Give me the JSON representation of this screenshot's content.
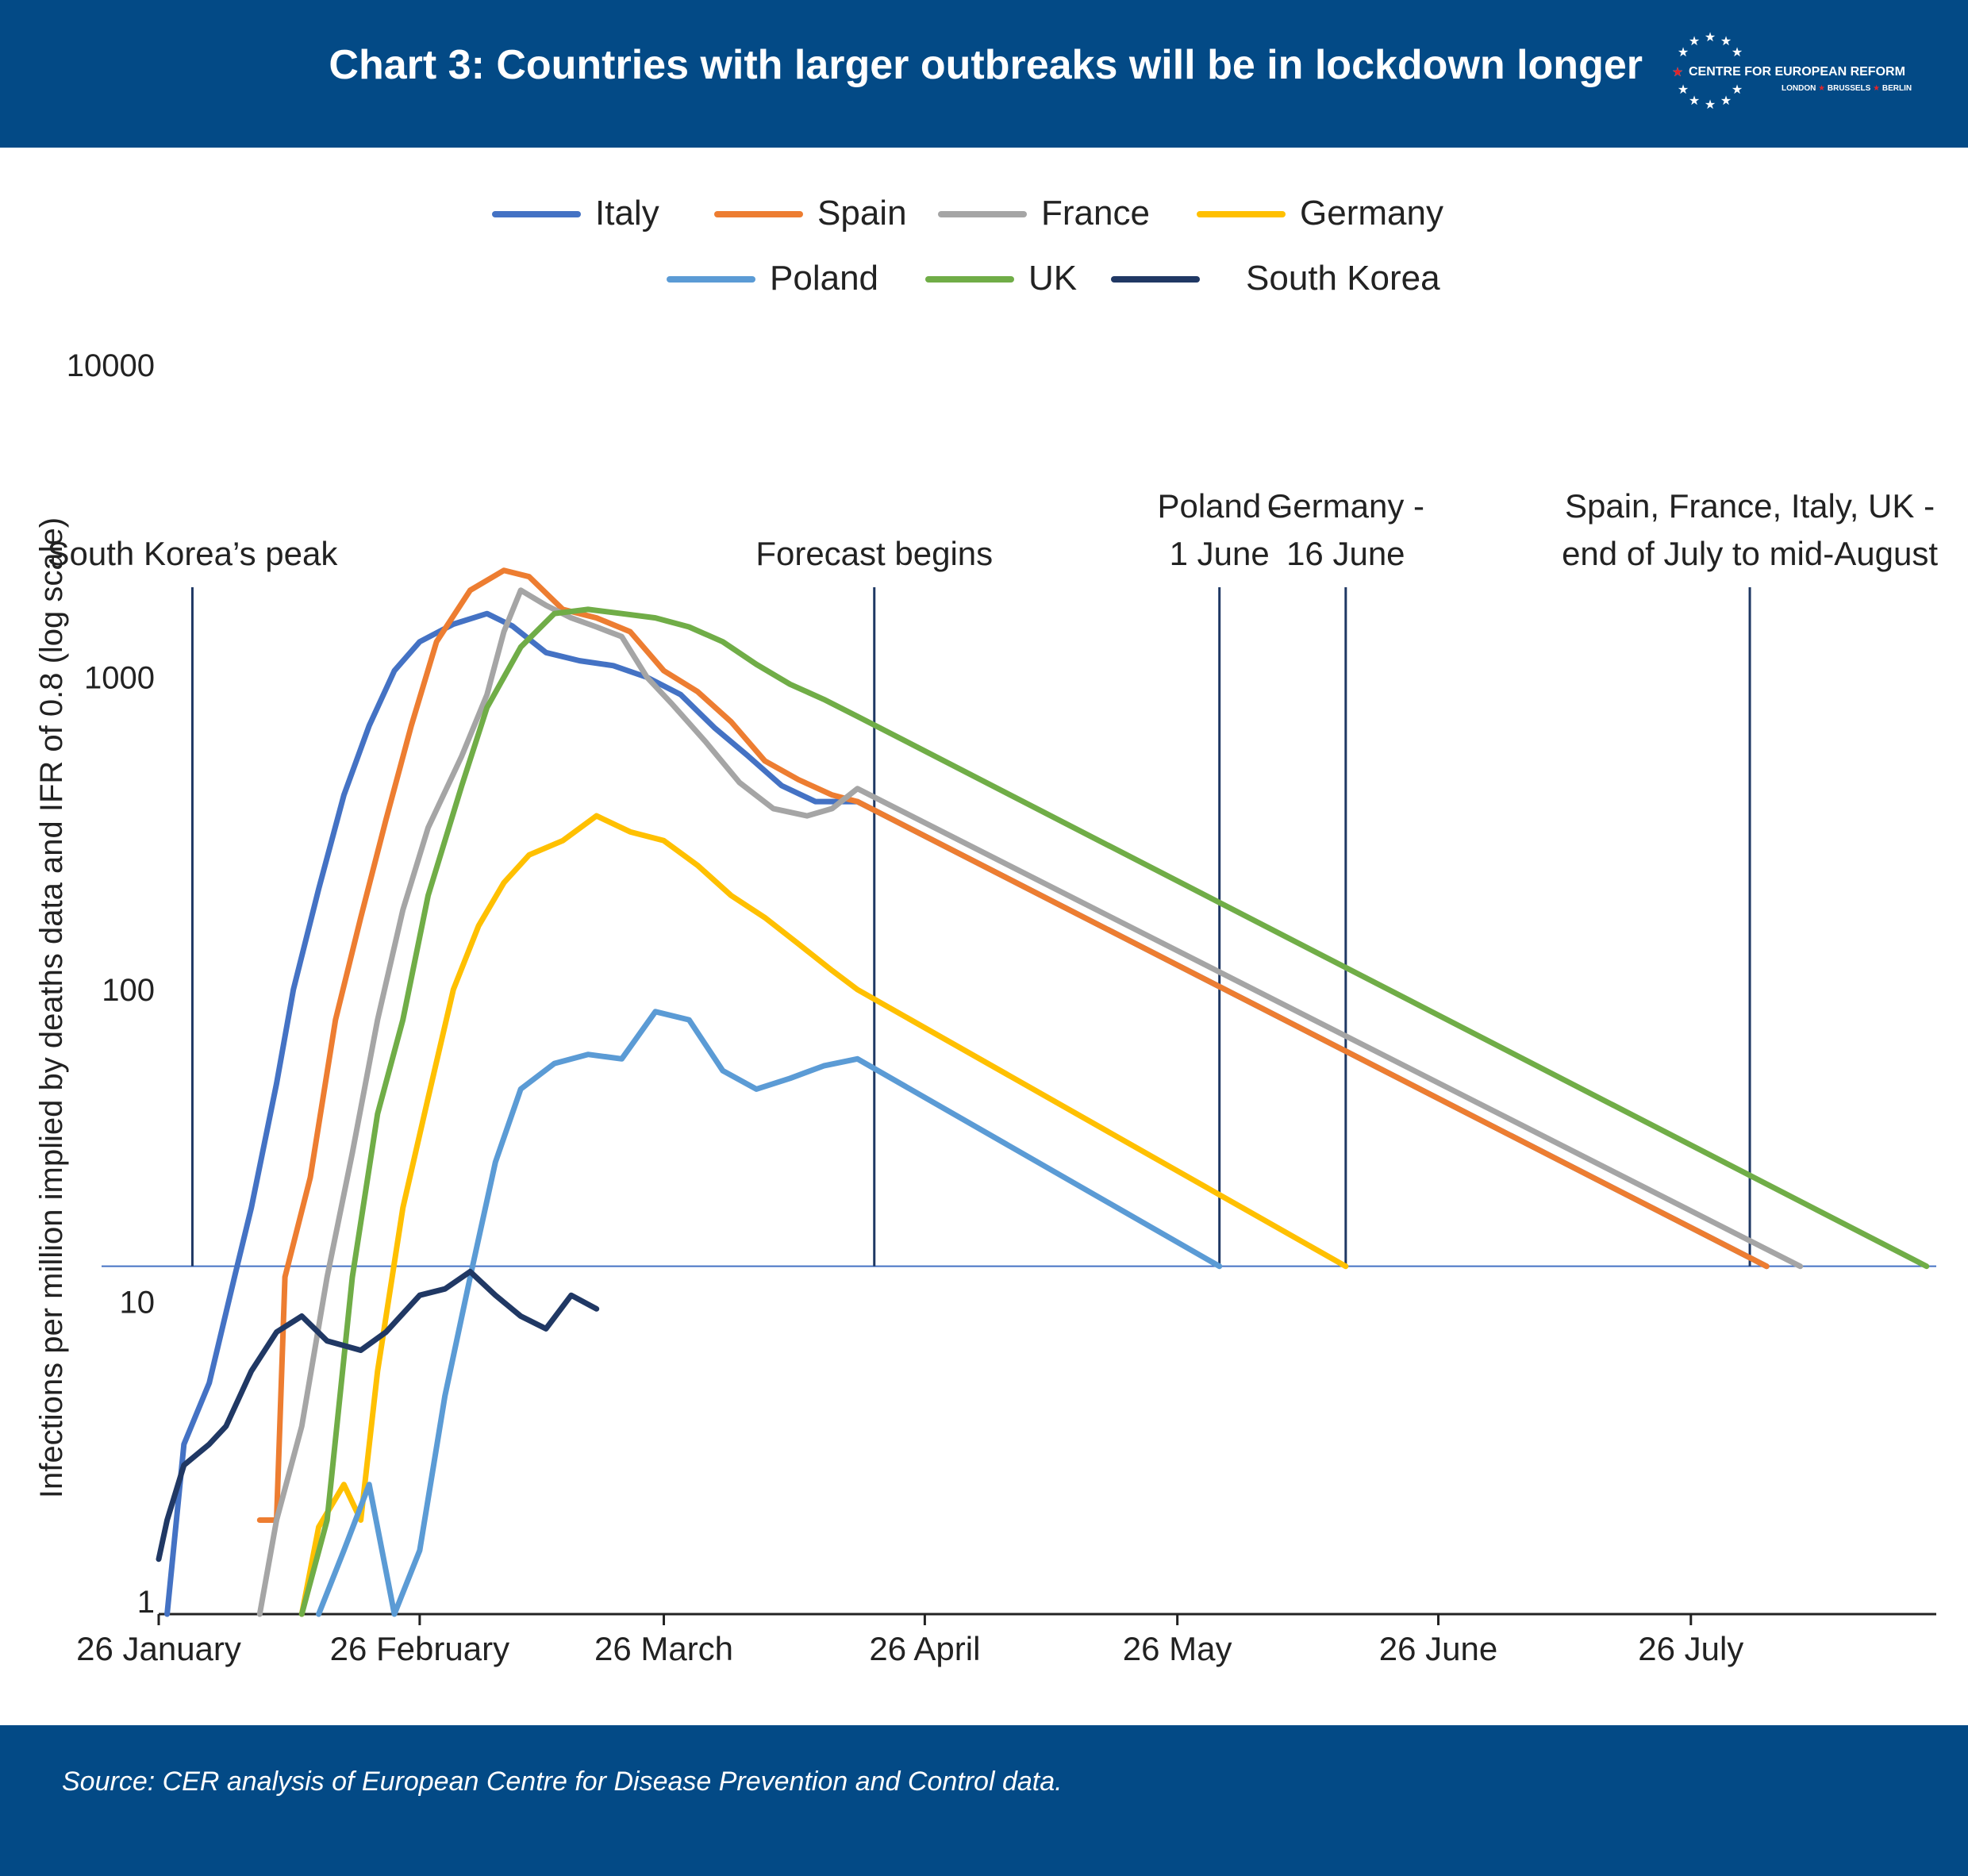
{
  "header": {
    "title": "Chart 3: Countries with larger outbreaks will be in lockdown longer",
    "logo_name": "CENTRE FOR EUROPEAN REFORM",
    "logo_cities": [
      "LONDON",
      "BRUSSELS",
      "BERLIN"
    ],
    "background": "#034a86"
  },
  "footer": {
    "source": "Source: CER analysis of European Centre for Disease Prevention and Control data."
  },
  "chart_data": {
    "type": "line",
    "title": "Chart 3: Countries with larger outbreaks will be in lockdown longer",
    "ylabel": "Infections per million implied by deaths data and IFR of 0.8 (log scale)",
    "xlabel": "",
    "y_scale": "log",
    "ylim": [
      1,
      10000
    ],
    "y_ticks": [
      "1",
      "10",
      "100",
      "1000",
      "10000"
    ],
    "x_ticks": [
      "26 January",
      "26 February",
      "26 March",
      "26 April",
      "26 May",
      "26 June",
      "26 July"
    ],
    "xlim": [
      "2020-01-26",
      "2020-08-27"
    ],
    "threshold": {
      "value": 13,
      "color": "#4472c4"
    },
    "legend_position": "top-center",
    "grid": false,
    "annotations": [
      {
        "date": "2020-01-30",
        "lines": [
          "South Korea’s peak"
        ]
      },
      {
        "date": "2020-04-20",
        "lines": [
          "Forecast begins"
        ]
      },
      {
        "date": "2020-05-31",
        "lines": [
          "Poland -",
          "1 June"
        ]
      },
      {
        "date": "2020-06-15",
        "lines": [
          "Germany -",
          "16 June"
        ]
      },
      {
        "date": "2020-08-02",
        "lines": [
          "Spain, France, Italy, UK -",
          "end of July to mid-August"
        ]
      }
    ],
    "series": [
      {
        "name": "Italy",
        "color": "#4472c4",
        "points": [
          [
            "2020-01-27",
            1
          ],
          [
            "2020-01-29",
            3.5
          ],
          [
            "2020-02-01",
            5.5
          ],
          [
            "2020-02-04",
            12
          ],
          [
            "2020-02-06",
            20
          ],
          [
            "2020-02-09",
            50
          ],
          [
            "2020-02-11",
            100
          ],
          [
            "2020-02-14",
            210
          ],
          [
            "2020-02-17",
            420
          ],
          [
            "2020-02-20",
            700
          ],
          [
            "2020-02-23",
            1050
          ],
          [
            "2020-02-26",
            1300
          ],
          [
            "2020-03-01",
            1480
          ],
          [
            "2020-03-05",
            1600
          ],
          [
            "2020-03-08",
            1460
          ],
          [
            "2020-03-12",
            1200
          ],
          [
            "2020-03-16",
            1130
          ],
          [
            "2020-03-20",
            1090
          ],
          [
            "2020-03-24",
            1000
          ],
          [
            "2020-03-28",
            880
          ],
          [
            "2020-04-01",
            690
          ],
          [
            "2020-04-05",
            560
          ],
          [
            "2020-04-09",
            450
          ],
          [
            "2020-04-13",
            400
          ],
          [
            "2020-04-18",
            400
          ],
          [
            "2020-08-04",
            13
          ]
        ]
      },
      {
        "name": "Spain",
        "color": "#ed7d31",
        "points": [
          [
            "2020-02-07",
            2
          ],
          [
            "2020-02-09",
            2
          ],
          [
            "2020-02-10",
            12
          ],
          [
            "2020-02-13",
            25
          ],
          [
            "2020-02-16",
            80
          ],
          [
            "2020-02-19",
            170
          ],
          [
            "2020-02-22",
            350
          ],
          [
            "2020-02-25",
            700
          ],
          [
            "2020-02-28",
            1300
          ],
          [
            "2020-03-03",
            1900
          ],
          [
            "2020-03-07",
            2200
          ],
          [
            "2020-03-10",
            2100
          ],
          [
            "2020-03-14",
            1650
          ],
          [
            "2020-03-18",
            1550
          ],
          [
            "2020-03-22",
            1400
          ],
          [
            "2020-03-26",
            1050
          ],
          [
            "2020-03-30",
            900
          ],
          [
            "2020-04-03",
            720
          ],
          [
            "2020-04-07",
            540
          ],
          [
            "2020-04-11",
            470
          ],
          [
            "2020-04-15",
            420
          ],
          [
            "2020-04-18",
            400
          ],
          [
            "2020-08-04",
            13
          ]
        ]
      },
      {
        "name": "France",
        "color": "#a5a5a5",
        "points": [
          [
            "2020-02-07",
            1
          ],
          [
            "2020-02-09",
            2
          ],
          [
            "2020-02-12",
            4
          ],
          [
            "2020-02-15",
            12
          ],
          [
            "2020-02-18",
            30
          ],
          [
            "2020-02-21",
            80
          ],
          [
            "2020-02-24",
            180
          ],
          [
            "2020-02-27",
            330
          ],
          [
            "2020-03-02",
            560
          ],
          [
            "2020-03-05",
            880
          ],
          [
            "2020-03-07",
            1400
          ],
          [
            "2020-03-09",
            1900
          ],
          [
            "2020-03-12",
            1700
          ],
          [
            "2020-03-15",
            1550
          ],
          [
            "2020-03-18",
            1450
          ],
          [
            "2020-03-21",
            1350
          ],
          [
            "2020-03-24",
            1000
          ],
          [
            "2020-03-27",
            820
          ],
          [
            "2020-03-31",
            620
          ],
          [
            "2020-04-04",
            460
          ],
          [
            "2020-04-08",
            380
          ],
          [
            "2020-04-12",
            360
          ],
          [
            "2020-04-15",
            380
          ],
          [
            "2020-04-18",
            440
          ],
          [
            "2020-08-08",
            13
          ]
        ]
      },
      {
        "name": "Germany",
        "color": "#ffc000",
        "points": [
          [
            "2020-02-12",
            1
          ],
          [
            "2020-02-14",
            1.9
          ],
          [
            "2020-02-17",
            2.6
          ],
          [
            "2020-02-19",
            2
          ],
          [
            "2020-02-21",
            6
          ],
          [
            "2020-02-24",
            20
          ],
          [
            "2020-02-27",
            45
          ],
          [
            "2020-03-01",
            100
          ],
          [
            "2020-03-04",
            160
          ],
          [
            "2020-03-07",
            220
          ],
          [
            "2020-03-10",
            270
          ],
          [
            "2020-03-14",
            300
          ],
          [
            "2020-03-18",
            360
          ],
          [
            "2020-03-22",
            320
          ],
          [
            "2020-03-26",
            300
          ],
          [
            "2020-03-30",
            250
          ],
          [
            "2020-04-03",
            200
          ],
          [
            "2020-04-07",
            170
          ],
          [
            "2020-04-11",
            140
          ],
          [
            "2020-04-15",
            115
          ],
          [
            "2020-04-18",
            100
          ],
          [
            "2020-06-15",
            13
          ]
        ]
      },
      {
        "name": "Poland",
        "color": "#5b9bd5",
        "points": [
          [
            "2020-02-14",
            1
          ],
          [
            "2020-02-17",
            1.6
          ],
          [
            "2020-02-20",
            2.6
          ],
          [
            "2020-02-23",
            1
          ],
          [
            "2020-02-26",
            1.6
          ],
          [
            "2020-02-29",
            5
          ],
          [
            "2020-03-03",
            12
          ],
          [
            "2020-03-06",
            28
          ],
          [
            "2020-03-09",
            48
          ],
          [
            "2020-03-13",
            58
          ],
          [
            "2020-03-17",
            62
          ],
          [
            "2020-03-21",
            60
          ],
          [
            "2020-03-25",
            85
          ],
          [
            "2020-03-29",
            80
          ],
          [
            "2020-04-02",
            55
          ],
          [
            "2020-04-06",
            48
          ],
          [
            "2020-04-10",
            52
          ],
          [
            "2020-04-14",
            57
          ],
          [
            "2020-04-18",
            60
          ],
          [
            "2020-05-31",
            13
          ]
        ]
      },
      {
        "name": "UK",
        "color": "#70ad47",
        "points": [
          [
            "2020-02-12",
            1
          ],
          [
            "2020-02-15",
            2
          ],
          [
            "2020-02-18",
            12
          ],
          [
            "2020-02-21",
            40
          ],
          [
            "2020-02-24",
            80
          ],
          [
            "2020-02-27",
            200
          ],
          [
            "2020-03-02",
            450
          ],
          [
            "2020-03-05",
            800
          ],
          [
            "2020-03-09",
            1250
          ],
          [
            "2020-03-13",
            1600
          ],
          [
            "2020-03-17",
            1650
          ],
          [
            "2020-03-21",
            1600
          ],
          [
            "2020-03-25",
            1550
          ],
          [
            "2020-03-29",
            1450
          ],
          [
            "2020-04-02",
            1300
          ],
          [
            "2020-04-06",
            1100
          ],
          [
            "2020-04-10",
            950
          ],
          [
            "2020-04-14",
            850
          ],
          [
            "2020-04-18",
            750
          ],
          [
            "2020-08-23",
            13
          ]
        ]
      },
      {
        "name": "South Korea",
        "color": "#203864",
        "points": [
          [
            "2020-01-26",
            1.5
          ],
          [
            "2020-01-27",
            2
          ],
          [
            "2020-01-29",
            3
          ],
          [
            "2020-02-01",
            3.5
          ],
          [
            "2020-02-03",
            4
          ],
          [
            "2020-02-06",
            6
          ],
          [
            "2020-02-09",
            8
          ],
          [
            "2020-02-12",
            9
          ],
          [
            "2020-02-15",
            7.5
          ],
          [
            "2020-02-19",
            7
          ],
          [
            "2020-02-22",
            8
          ],
          [
            "2020-02-26",
            10.5
          ],
          [
            "2020-02-29",
            11
          ],
          [
            "2020-03-03",
            12.5
          ],
          [
            "2020-03-06",
            10.5
          ],
          [
            "2020-03-09",
            9
          ],
          [
            "2020-03-12",
            8.2
          ],
          [
            "2020-03-15",
            10.5
          ],
          [
            "2020-03-18",
            9.5
          ]
        ]
      }
    ]
  }
}
